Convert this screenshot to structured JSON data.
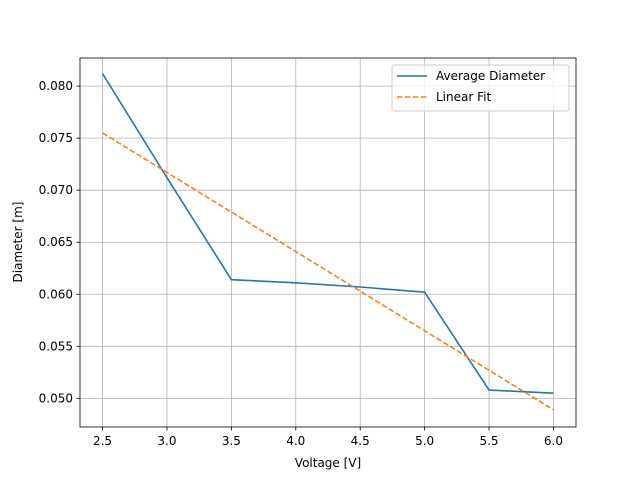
{
  "chart_data": {
    "type": "line",
    "title": "",
    "xlabel": "Voltage [V]",
    "ylabel": "Diameter [m]",
    "xlim": [
      2.325,
      6.175
    ],
    "ylim": [
      0.04725,
      0.0827
    ],
    "xticks": [
      2.5,
      3.0,
      3.5,
      4.0,
      4.5,
      5.0,
      5.5,
      6.0
    ],
    "xtick_labels": [
      "2.5",
      "3.0",
      "3.5",
      "4.0",
      "4.5",
      "5.0",
      "5.5",
      "6.0"
    ],
    "yticks": [
      0.05,
      0.055,
      0.06,
      0.065,
      0.07,
      0.075,
      0.08
    ],
    "ytick_labels": [
      "0.050",
      "0.055",
      "0.060",
      "0.065",
      "0.070",
      "0.075",
      "0.080"
    ],
    "grid": true,
    "legend_position": "top-right",
    "series": [
      {
        "name": "Average Diameter",
        "style": "solid",
        "color": "#1f77b4",
        "x": [
          2.5,
          3.0,
          3.5,
          4.0,
          4.5,
          5.0,
          5.5,
          6.0
        ],
        "y": [
          0.0812,
          0.0712,
          0.0614,
          0.0611,
          0.0607,
          0.0602,
          0.0508,
          0.0505
        ]
      },
      {
        "name": "Linear Fit",
        "style": "dashed",
        "color": "#ff7f0e",
        "x": [
          2.5,
          6.0
        ],
        "y": [
          0.0755,
          0.0489
        ]
      }
    ]
  }
}
